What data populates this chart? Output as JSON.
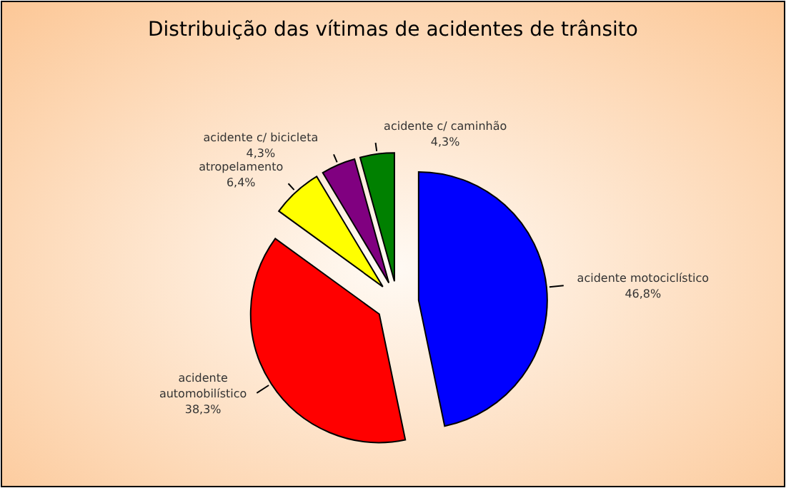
{
  "chart_data": {
    "type": "pie",
    "title": "Distribuição das vítimas de acidentes de trânsito",
    "categories": [
      "acidente motociclístico",
      "acidente automobilístico",
      "atropelamento",
      "acidente c/ bicicleta",
      "acidente c/ caminhão"
    ],
    "values": [
      46.8,
      38.3,
      6.4,
      4.3,
      4.3
    ],
    "value_labels": [
      "46,8%",
      "38,3%",
      "6,4%",
      "4,3%",
      "4,3%"
    ],
    "colors": [
      "#0000ff",
      "#ff0000",
      "#ffff00",
      "#800080",
      "#008000"
    ]
  }
}
